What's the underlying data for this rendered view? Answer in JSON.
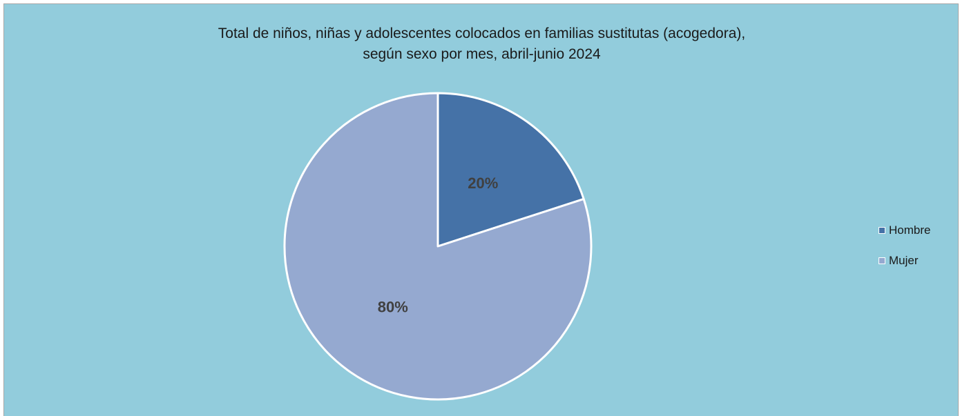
{
  "colors": {
    "background": "#92ccdc",
    "hombre": "#4572a7",
    "mujer": "#95a9d0",
    "slice_border": "#ffffff",
    "label_text": "#404040"
  },
  "chart_data": {
    "type": "pie",
    "title": [
      "Total de niños, niñas y adolescentes colocados en familias sustitutas (acogedora),",
      "según sexo por mes, abril-junio 2024"
    ],
    "categories": [
      "Hombre",
      "Mujer"
    ],
    "values": [
      20,
      80
    ],
    "data_labels": [
      "20%",
      "80%"
    ],
    "legend_position": "right"
  }
}
